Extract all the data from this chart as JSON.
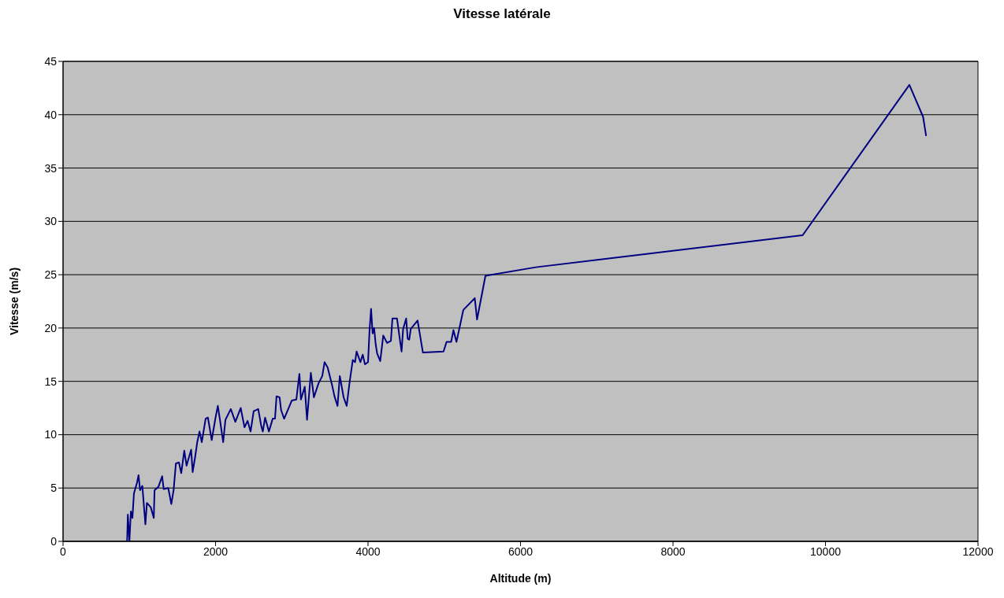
{
  "chart_data": {
    "type": "line",
    "title": "Vitesse latérale",
    "xlabel": "Altitude (m)",
    "ylabel": "Vitesse (m/s)",
    "xlim": [
      0,
      12000
    ],
    "xticks": [
      0,
      2000,
      4000,
      6000,
      8000,
      10000,
      12000
    ],
    "ylim": [
      0,
      45
    ],
    "yticks": [
      0,
      5,
      10,
      15,
      20,
      25,
      30,
      35,
      40,
      45
    ],
    "grid": "y",
    "legend": false,
    "marker": "none",
    "line_style": "solid",
    "series": [
      {
        "color": "#000080",
        "x": [
          840,
          850,
          870,
          890,
          910,
          930,
          950,
          970,
          990,
          1010,
          1040,
          1080,
          1100,
          1150,
          1190,
          1200,
          1250,
          1300,
          1320,
          1380,
          1420,
          1450,
          1480,
          1520,
          1550,
          1590,
          1620,
          1680,
          1700,
          1730,
          1760,
          1790,
          1820,
          1870,
          1900,
          1950,
          2000,
          2030,
          2060,
          2100,
          2130,
          2200,
          2260,
          2330,
          2380,
          2420,
          2460,
          2500,
          2560,
          2600,
          2620,
          2650,
          2700,
          2750,
          2780,
          2800,
          2840,
          2860,
          2900,
          3000,
          3060,
          3100,
          3120,
          3170,
          3200,
          3250,
          3290,
          3350,
          3400,
          3430,
          3470,
          3530,
          3560,
          3600,
          3630,
          3680,
          3720,
          3760,
          3800,
          3830,
          3850,
          3900,
          3930,
          3960,
          4000,
          4020,
          4040,
          4060,
          4080,
          4100,
          4120,
          4160,
          4200,
          4250,
          4300,
          4320,
          4380,
          4420,
          4440,
          4460,
          4500,
          4520,
          4540,
          4560,
          4650,
          4720,
          4990,
          5030,
          5090,
          5120,
          5160,
          5250,
          5400,
          5430,
          5540,
          6200,
          9700,
          11100,
          11280,
          11320
        ],
        "values": [
          0,
          2.5,
          0,
          2.8,
          2.2,
          4.5,
          5,
          5.5,
          6.2,
          4.8,
          5.2,
          1.6,
          3.6,
          3.2,
          2.2,
          4.8,
          5.1,
          6.1,
          4.9,
          5,
          3.5,
          4.8,
          7.3,
          7.4,
          6.4,
          8.5,
          7.1,
          8.6,
          6.5,
          7.8,
          9.3,
          10.3,
          9.3,
          11.5,
          11.6,
          9.5,
          11.6,
          12.7,
          11.3,
          9.3,
          11.4,
          12.4,
          11.2,
          12.5,
          10.7,
          11.3,
          10.3,
          12.2,
          12.4,
          10.8,
          10.3,
          11.6,
          10.3,
          11.5,
          11.5,
          13.6,
          13.5,
          12.3,
          11.5,
          13.2,
          13.3,
          15.7,
          13.3,
          14.5,
          11.4,
          15.8,
          13.5,
          14.8,
          15.5,
          16.8,
          16.3,
          14.6,
          13.6,
          12.7,
          15.5,
          13.5,
          12.7,
          15,
          17,
          16.8,
          17.8,
          16.8,
          17.5,
          16.6,
          16.8,
          19.8,
          21.8,
          19.5,
          20,
          18.5,
          17.6,
          16.9,
          19.3,
          18.6,
          18.8,
          20.9,
          20.9,
          18.8,
          17.8,
          19.9,
          20.9,
          19,
          18.9,
          19.9,
          20.7,
          17.7,
          17.8,
          18.7,
          18.7,
          19.8,
          18.7,
          21.7,
          22.8,
          20.8,
          24.9,
          25.7,
          28.7,
          42.8,
          39.8,
          38
        ]
      }
    ]
  }
}
